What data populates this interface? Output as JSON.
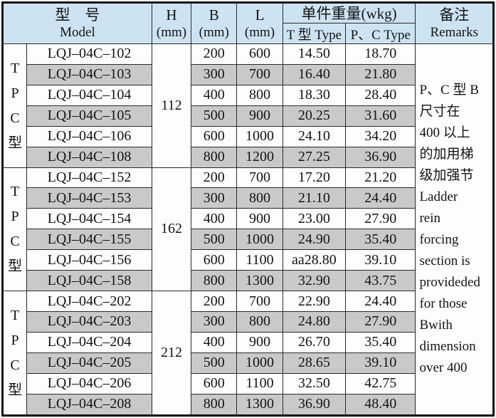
{
  "header": {
    "model_zh": "型　号",
    "model_en": "Model",
    "h_label": "H",
    "b_label": "B",
    "l_label": "L",
    "mm": "(mm)",
    "weight_zh": "单件重量(wkg)",
    "weight_t": "T 型 Type",
    "weight_pc": "P、C Type",
    "remarks_zh": "备注",
    "remarks_en": "Remarks"
  },
  "groups": [
    {
      "type_label": [
        "T",
        "P",
        "C",
        "型"
      ],
      "h": "112",
      "rows": [
        {
          "model": "LQJ–04C–102",
          "b": "200",
          "l": "600",
          "t_weight": "14.50",
          "pc_weight": "18.70",
          "shaded": false
        },
        {
          "model": "LQJ–04C–103",
          "b": "300",
          "l": "700",
          "t_weight": "16.40",
          "pc_weight": "21.80",
          "shaded": true
        },
        {
          "model": "LQJ–04C–104",
          "b": "400",
          "l": "800",
          "t_weight": "18.30",
          "pc_weight": "28.40",
          "shaded": false
        },
        {
          "model": "LQJ–04C–105",
          "b": "500",
          "l": "900",
          "t_weight": "20.25",
          "pc_weight": "31.60",
          "shaded": true
        },
        {
          "model": "LQJ–04C–106",
          "b": "600",
          "l": "1000",
          "t_weight": "24.10",
          "pc_weight": "34.20",
          "shaded": false
        },
        {
          "model": "LQJ–04C–108",
          "b": "800",
          "l": "1200",
          "t_weight": "27.25",
          "pc_weight": "36.90",
          "shaded": true
        }
      ]
    },
    {
      "type_label": [
        "T",
        "P",
        "C",
        "型"
      ],
      "h": "162",
      "rows": [
        {
          "model": "LQJ–04C–152",
          "b": "200",
          "l": "700",
          "t_weight": "17.20",
          "pc_weight": "21.20",
          "shaded": false
        },
        {
          "model": "LQJ–04C–153",
          "b": "300",
          "l": "800",
          "t_weight": "21.10",
          "pc_weight": "24.40",
          "shaded": true
        },
        {
          "model": "LQJ–04C–154",
          "b": "400",
          "l": "900",
          "t_weight": "23.00",
          "pc_weight": "27.90",
          "shaded": false
        },
        {
          "model": "LQJ–04C–155",
          "b": "500",
          "l": "1000",
          "t_weight": "24.90",
          "pc_weight": "35.40",
          "shaded": true
        },
        {
          "model": "LQJ–04C–156",
          "b": "600",
          "l": "1100",
          "t_weight": "aa28.80",
          "pc_weight": "39.10",
          "shaded": false
        },
        {
          "model": "LQJ–04C–158",
          "b": "800",
          "l": "1300",
          "t_weight": "32.90",
          "pc_weight": "43.75",
          "shaded": true
        }
      ]
    },
    {
      "type_label": [
        "T",
        "P",
        "C",
        "型"
      ],
      "h": "212",
      "rows": [
        {
          "model": "LQJ–04C–202",
          "b": "200",
          "l": "700",
          "t_weight": "22.90",
          "pc_weight": "24.40",
          "shaded": false
        },
        {
          "model": "LQJ–04C–203",
          "b": "300",
          "l": "800",
          "t_weight": "24.80",
          "pc_weight": "27.90",
          "shaded": true
        },
        {
          "model": "LQJ–04C–204",
          "b": "400",
          "l": "900",
          "t_weight": "26.70",
          "pc_weight": "35.40",
          "shaded": false
        },
        {
          "model": "LQJ–04C–205",
          "b": "500",
          "l": "1000",
          "t_weight": "28.65",
          "pc_weight": "39.10",
          "shaded": true
        },
        {
          "model": "LQJ–04C–206",
          "b": "600",
          "l": "1100",
          "t_weight": "32.50",
          "pc_weight": "42.75",
          "shaded": false
        },
        {
          "model": "LQJ–04C–208",
          "b": "800",
          "l": "1300",
          "t_weight": "36.90",
          "pc_weight": "48.40",
          "shaded": true
        }
      ]
    }
  ],
  "remarks_lines": [
    "P、C 型 B",
    "尺寸在",
    "400 以上",
    "的加用梯",
    "级加强节",
    "Ladder",
    "rein",
    "forcing",
    "section is",
    "provideded",
    "for those",
    "Bwith",
    "dimension",
    "over 400"
  ],
  "colors": {
    "header_bg": "#cde3f2",
    "shaded_row": "#c9c9c9",
    "border": "#2a2a2a",
    "outer_border": "#111111",
    "text": "#141414"
  }
}
